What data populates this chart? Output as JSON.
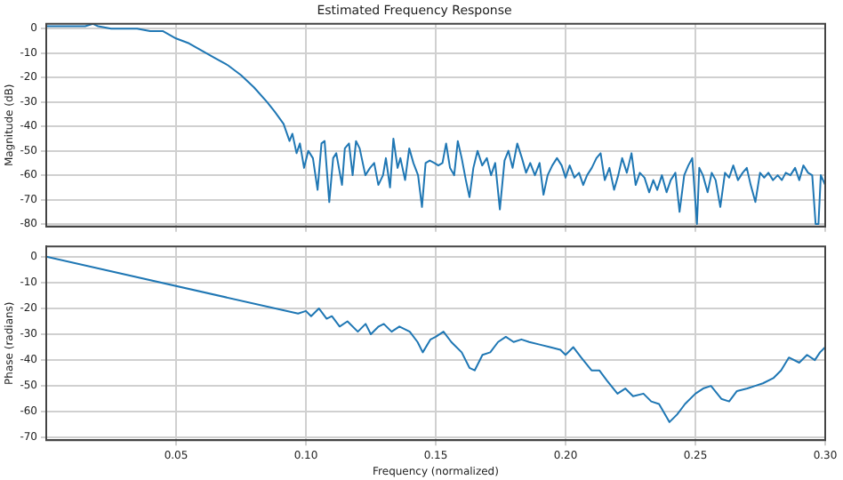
{
  "chart_data": [
    {
      "type": "line",
      "title": "Estimated Frequency Response",
      "ylabel": "Magnitude (dB)",
      "tick_labels": "y",
      "grid": true,
      "legend": false,
      "xlim": [
        0,
        0.3
      ],
      "ylim": [
        -81,
        2
      ],
      "yticks": [
        0,
        -10,
        -20,
        -30,
        -40,
        -50,
        -60,
        -70,
        -80
      ],
      "xticks": [
        0.05,
        0.1,
        0.15,
        0.2,
        0.25,
        0.3
      ],
      "series": [
        {
          "color": "#1f77b4",
          "x": [
            0,
            0.005,
            0.01,
            0.015,
            0.018,
            0.02,
            0.025,
            0.03,
            0.035,
            0.04,
            0.045,
            0.05,
            0.055,
            0.06,
            0.065,
            0.07,
            0.075,
            0.08,
            0.085,
            0.088,
            0.0914,
            0.0937,
            0.0948,
            0.0964,
            0.0977,
            0.0993,
            0.1009,
            0.1027,
            0.1045,
            0.106,
            0.1072,
            0.109,
            0.1105,
            0.1117,
            0.1139,
            0.115,
            0.1166,
            0.118,
            0.1193,
            0.1207,
            0.1229,
            0.1247,
            0.1263,
            0.1279,
            0.1297,
            0.1308,
            0.1324,
            0.1337,
            0.1353,
            0.1364,
            0.1382,
            0.1398,
            0.1414,
            0.1432,
            0.1447,
            0.1461,
            0.1477,
            0.1495,
            0.151,
            0.1526,
            0.154,
            0.1555,
            0.1571,
            0.1585,
            0.16,
            0.1616,
            0.163,
            0.1645,
            0.1661,
            0.1679,
            0.1697,
            0.1713,
            0.1729,
            0.1747,
            0.1765,
            0.178,
            0.1796,
            0.1814,
            0.1832,
            0.1848,
            0.1864,
            0.1882,
            0.19,
            0.1915,
            0.1931,
            0.1949,
            0.1967,
            0.1985,
            0.2,
            0.2016,
            0.2034,
            0.2052,
            0.2068,
            0.2083,
            0.2101,
            0.2119,
            0.2135,
            0.2151,
            0.2169,
            0.2187,
            0.2203,
            0.2218,
            0.2236,
            0.2254,
            0.227,
            0.2286,
            0.2304,
            0.2322,
            0.2338,
            0.2353,
            0.2371,
            0.2389,
            0.2405,
            0.2423,
            0.2439,
            0.2457,
            0.2473,
            0.2488,
            0.2506,
            0.2515,
            0.2529,
            0.2547,
            0.2563,
            0.2578,
            0.2596,
            0.2614,
            0.263,
            0.2646,
            0.2664,
            0.2682,
            0.2698,
            0.2713,
            0.2731,
            0.2749,
            0.2765,
            0.2781,
            0.2799,
            0.2817,
            0.2833,
            0.2848,
            0.2866,
            0.2884,
            0.29,
            0.2916,
            0.2934,
            0.295,
            0.2963,
            0.2974,
            0.2983,
            0.3
          ],
          "values": [
            1,
            1,
            1,
            1,
            2,
            1,
            0,
            0,
            0,
            -1,
            -1,
            -4,
            -6,
            -9,
            -12,
            -15,
            -19,
            -24,
            -30,
            -34,
            -39,
            -46,
            -43,
            -51,
            -47,
            -57,
            -50,
            -53,
            -66,
            -47,
            -46,
            -71,
            -53,
            -51,
            -64,
            -49,
            -47,
            -60,
            -46,
            -49,
            -60,
            -57,
            -55,
            -64,
            -60,
            -53,
            -65,
            -45,
            -57,
            -53,
            -62,
            -49,
            -55,
            -60,
            -73,
            -55,
            -54,
            -55,
            -56,
            -55,
            -47,
            -57,
            -60,
            -46,
            -53,
            -62,
            -69,
            -57,
            -50,
            -56,
            -53,
            -60,
            -55,
            -74,
            -54,
            -50,
            -57,
            -47,
            -53,
            -59,
            -55,
            -60,
            -55,
            -68,
            -60,
            -56,
            -53,
            -56,
            -61,
            -56,
            -61,
            -59,
            -64,
            -60,
            -57,
            -53,
            -51,
            -62,
            -57,
            -66,
            -60,
            -53,
            -59,
            -51,
            -64,
            -59,
            -61,
            -67,
            -62,
            -66,
            -60,
            -67,
            -62,
            -59,
            -75,
            -60,
            -56,
            -53,
            -80,
            -57,
            -60,
            -67,
            -59,
            -62,
            -73,
            -59,
            -61,
            -56,
            -62,
            -59,
            -57,
            -64,
            -71,
            -59,
            -61,
            -59,
            -62,
            -60,
            -62,
            -59,
            -60,
            -57,
            -62,
            -56,
            -59,
            -60,
            -80,
            -80,
            -60,
            -64
          ]
        }
      ]
    },
    {
      "type": "line",
      "xlabel": "Frequency (normalized)",
      "ylabel": "Phase (radians)",
      "grid": true,
      "legend": false,
      "xlim": [
        0,
        0.3
      ],
      "ylim": [
        -71,
        4
      ],
      "yticks": [
        0,
        -10,
        -20,
        -30,
        -40,
        -50,
        -60,
        -70
      ],
      "xticks": [
        0.05,
        {
          "value": 0.1,
          "label": "0.10"
        },
        0.15,
        {
          "value": 0.2,
          "label": "0.20"
        },
        0.25,
        {
          "value": 0.3,
          "label": "0.30"
        }
      ],
      "series": [
        {
          "color": "#1f77b4",
          "x": [
            0,
            0.097,
            0.1,
            0.102,
            0.105,
            0.108,
            0.11,
            0.113,
            0.116,
            0.12,
            0.123,
            0.125,
            0.128,
            0.13,
            0.133,
            0.136,
            0.14,
            0.143,
            0.145,
            0.148,
            0.15,
            0.153,
            0.156,
            0.16,
            0.163,
            0.165,
            0.168,
            0.171,
            0.174,
            0.177,
            0.18,
            0.183,
            0.186,
            0.19,
            0.194,
            0.198,
            0.2,
            0.203,
            0.206,
            0.21,
            0.213,
            0.216,
            0.22,
            0.223,
            0.226,
            0.23,
            0.233,
            0.236,
            0.24,
            0.243,
            0.246,
            0.25,
            0.253,
            0.256,
            0.26,
            0.263,
            0.266,
            0.27,
            0.273,
            0.276,
            0.28,
            0.283,
            0.286,
            0.29,
            0.293,
            0.296,
            0.298,
            0.3
          ],
          "values": [
            0,
            -22,
            -21,
            -23,
            -20,
            -24,
            -23,
            -27,
            -25,
            -29,
            -26,
            -30,
            -27,
            -26,
            -29,
            -27,
            -29,
            -33,
            -37,
            -32,
            -31,
            -29,
            -33,
            -37,
            -43,
            -44,
            -38,
            -37,
            -33,
            -31,
            -33,
            -32,
            -33,
            -34,
            -35,
            -36,
            -38,
            -35,
            -39,
            -44,
            -44,
            -48,
            -53,
            -51,
            -54,
            -53,
            -56,
            -57,
            -64,
            -61,
            -57,
            -53,
            -51,
            -50,
            -55,
            -56,
            -52,
            -51,
            -50,
            -49,
            -47,
            -44,
            -39,
            -41,
            -38,
            -40,
            -37,
            -35
          ]
        }
      ]
    }
  ]
}
